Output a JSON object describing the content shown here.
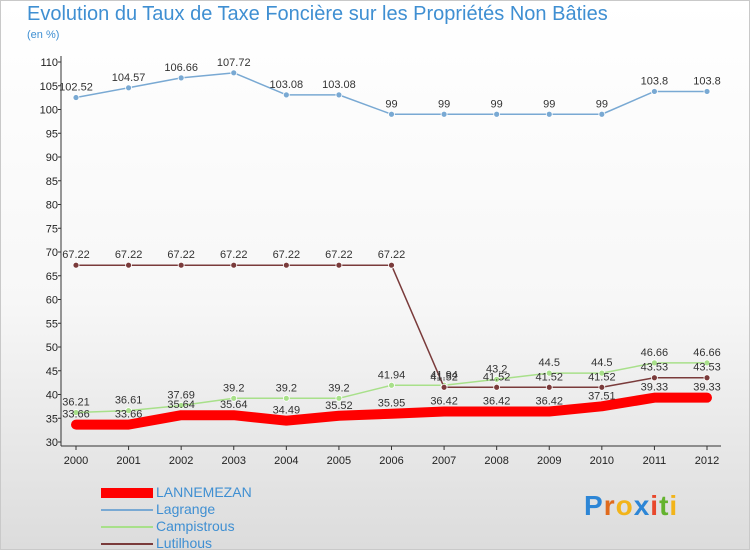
{
  "title": "Evolution du Taux de Taxe Foncière sur les Propriétés Non Bâties",
  "unit": "(en %)",
  "brand": {
    "letters": [
      {
        "ch": "P",
        "color": "#2d86d6"
      },
      {
        "ch": "r",
        "color": "#e06a1c"
      },
      {
        "ch": "o",
        "color": "#f2b41a"
      },
      {
        "ch": "x",
        "color": "#2d86d6"
      },
      {
        "ch": "i",
        "color": "#e8482c"
      },
      {
        "ch": "t",
        "color": "#64b32e"
      },
      {
        "ch": "i",
        "color": "#f2b41a"
      }
    ]
  },
  "chart_data": {
    "type": "line",
    "title": "Evolution du Taux de Taxe Foncière sur les Propriétés Non Bâties",
    "ylabel": "(en %)",
    "x": [
      "2000",
      "2001",
      "2002",
      "2003",
      "2004",
      "2005",
      "2006",
      "2007",
      "2008",
      "2009",
      "2010",
      "2011",
      "2012"
    ],
    "ylim": [
      30,
      110
    ],
    "yticks": [
      30,
      35,
      40,
      45,
      50,
      55,
      60,
      65,
      70,
      75,
      80,
      85,
      90,
      95,
      100,
      105,
      110
    ],
    "grid": false,
    "legend_position": "bottom-left",
    "series": [
      {
        "name": "LANNEMEZAN",
        "color": "#ff0000",
        "values": [
          33.66,
          33.66,
          35.64,
          35.64,
          34.49,
          35.52,
          35.95,
          36.42,
          36.42,
          36.42,
          37.51,
          39.33,
          39.33
        ],
        "labels": [
          "33.66",
          "33.66",
          "35.64",
          "35.64",
          "34.49",
          "35.52",
          "35.95",
          "36.42",
          "36.42",
          "36.42",
          "37.51",
          "39.33",
          "39.33"
        ]
      },
      {
        "name": "Lagrange",
        "color": "#79a9d3",
        "values": [
          102.52,
          104.57,
          106.66,
          107.72,
          103.08,
          103.08,
          99,
          99,
          99,
          99,
          99,
          103.8,
          103.8
        ],
        "labels": [
          "102.52",
          "104.57",
          "106.66",
          "107.72",
          "103.08",
          "103.08",
          "99",
          "99",
          "99",
          "99",
          "99",
          "103.8",
          "103.8"
        ]
      },
      {
        "name": "Campistrous",
        "color": "#a8e08a",
        "values": [
          36.21,
          36.61,
          37.69,
          39.2,
          39.2,
          39.2,
          41.94,
          41.94,
          43.2,
          44.5,
          44.5,
          46.66,
          46.66
        ],
        "labels": [
          "36.21",
          "36.61",
          "37.69",
          "39.2",
          "39.2",
          "39.2",
          "41.94",
          "41.94",
          "43.2",
          "44.5",
          "44.5",
          "46.66",
          "46.66"
        ]
      },
      {
        "name": "Lutilhous",
        "color": "#7a3b3b",
        "values": [
          67.22,
          67.22,
          67.22,
          67.22,
          67.22,
          67.22,
          67.22,
          41.52,
          41.52,
          41.52,
          41.52,
          43.53,
          43.53
        ],
        "labels": [
          "67.22",
          "67.22",
          "67.22",
          "67.22",
          "67.22",
          "67.22",
          "67.22",
          "41.52",
          "41.52",
          "41.52",
          "41.52",
          "43.53",
          "43.53"
        ]
      }
    ]
  }
}
